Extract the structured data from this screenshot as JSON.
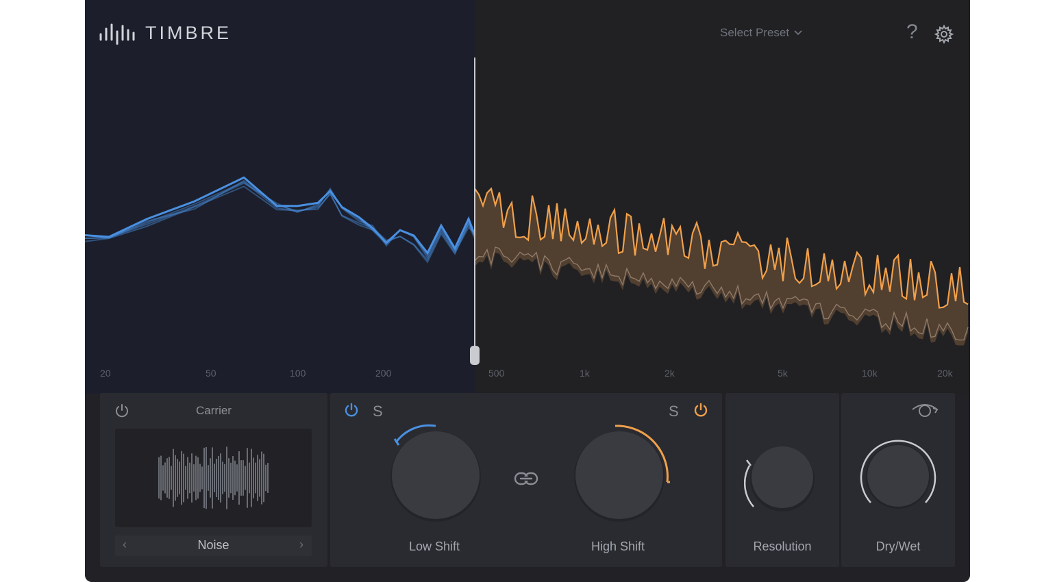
{
  "header": {
    "app_title": "TIMBRE",
    "preset_label": "Select Preset",
    "help_label": "?"
  },
  "spectrum": {
    "frequency_labels": [
      "20",
      "50",
      "100",
      "200",
      "500",
      "1k",
      "2k",
      "5k",
      "10k",
      "20k"
    ],
    "low_color": "#4a90e2",
    "high_color": "#f0a04b"
  },
  "carrier": {
    "title": "Carrier",
    "source": "Noise",
    "prev_label": "‹",
    "next_label": "›"
  },
  "controls": {
    "low_shift_label": "Low Shift",
    "high_shift_label": "High Shift",
    "resolution_label": "Resolution",
    "dry_wet_label": "Dry/Wet",
    "solo_label": "S"
  },
  "colors": {
    "accent_low": "#4a90e2",
    "accent_high": "#f0a04b"
  }
}
